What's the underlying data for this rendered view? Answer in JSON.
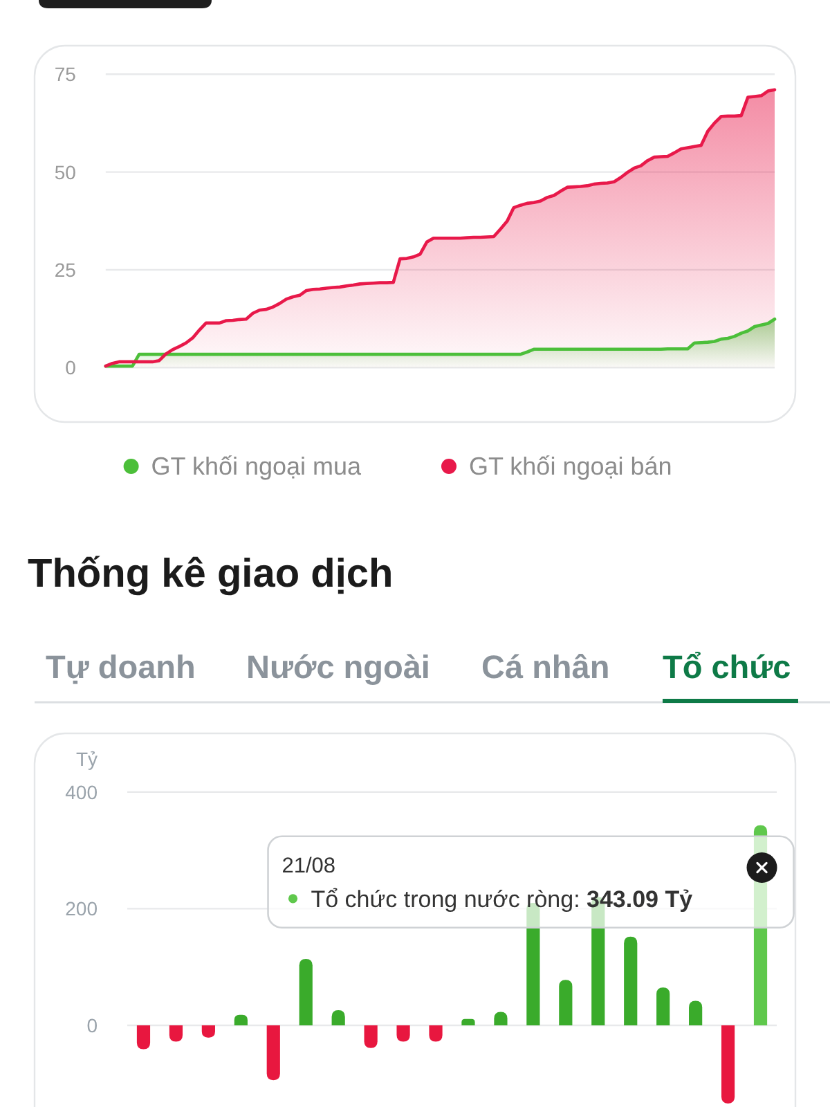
{
  "chart_data": [
    {
      "type": "area",
      "categories": [
        null,
        null,
        null,
        null,
        null,
        null,
        null,
        null,
        null,
        null,
        null,
        null,
        null,
        null,
        null,
        null,
        null,
        null,
        null,
        null,
        null,
        null,
        null,
        null,
        null,
        null,
        null,
        null,
        null,
        null,
        null,
        null,
        null,
        null,
        null,
        null,
        null,
        null,
        null,
        null,
        null,
        null,
        null,
        null,
        null,
        null,
        null,
        null,
        null,
        null,
        null,
        null,
        null,
        null,
        null,
        null,
        null,
        null,
        null,
        null,
        null,
        null,
        null,
        null,
        null,
        null,
        null,
        null,
        null,
        null,
        null,
        null,
        null,
        null,
        null,
        null,
        null,
        null,
        null,
        null,
        null,
        null,
        null,
        null,
        null,
        null,
        null,
        null,
        null,
        null,
        null,
        null,
        null,
        null,
        null,
        null,
        null,
        null,
        null,
        null,
        null
      ],
      "series": [
        {
          "name": "GT khối ngoại mua",
          "color": "#4cbf3a",
          "values": [
            0.4,
            0.4,
            0.4,
            0.4,
            0.4,
            3.4,
            3.4,
            3.4,
            3.4,
            3.4,
            3.4,
            3.4,
            3.4,
            3.4,
            3.4,
            3.4,
            3.4,
            3.4,
            3.4,
            3.4,
            3.4,
            3.4,
            3.4,
            3.4,
            3.4,
            3.4,
            3.4,
            3.4,
            3.4,
            3.4,
            3.4,
            3.4,
            3.4,
            3.4,
            3.4,
            3.4,
            3.4,
            3.4,
            3.4,
            3.4,
            3.4,
            3.4,
            3.4,
            3.4,
            3.4,
            3.4,
            3.4,
            3.4,
            3.4,
            3.4,
            3.4,
            3.4,
            3.4,
            3.4,
            3.4,
            3.4,
            3.4,
            3.4,
            3.4,
            3.4,
            3.4,
            3.4,
            3.4,
            4.0,
            4.7,
            4.7,
            4.7,
            4.7,
            4.7,
            4.7,
            4.7,
            4.7,
            4.7,
            4.7,
            4.7,
            4.7,
            4.7,
            4.7,
            4.7,
            4.7,
            4.7,
            4.7,
            4.7,
            4.7,
            4.8,
            4.8,
            4.8,
            4.8,
            6.3,
            6.4,
            6.5,
            6.7,
            7.3,
            7.5,
            8,
            8.8,
            9.4,
            10.5,
            10.9,
            11.3,
            12.4
          ]
        },
        {
          "name": "GT khối ngoại bán",
          "color": "#e8194a",
          "values": [
            0.4,
            1.1,
            1.5,
            1.5,
            1.5,
            1.5,
            1.5,
            1.5,
            1.8,
            3.5,
            4.6,
            5.4,
            6.3,
            7.6,
            9.6,
            11.4,
            11.4,
            11.4,
            12,
            12.1,
            12.3,
            12.4,
            13.9,
            14.7,
            14.9,
            15.5,
            16.4,
            17.5,
            18.1,
            18.5,
            19.7,
            20,
            20.1,
            20.3,
            20.5,
            20.6,
            20.9,
            21.1,
            21.4,
            21.5,
            21.6,
            21.7,
            21.7,
            21.8,
            27.8,
            27.9,
            28.3,
            29,
            32.1,
            33.1,
            33.1,
            33.1,
            33.1,
            33.1,
            33.2,
            33.3,
            33.3,
            33.4,
            33.5,
            35.4,
            37.4,
            40.9,
            41.5,
            42,
            42.2,
            42.6,
            43.5,
            44,
            45.1,
            46.1,
            46.2,
            46.3,
            46.5,
            46.9,
            47.1,
            47.2,
            47.5,
            48.6,
            49.9,
            51,
            51.6,
            52.9,
            53.8,
            53.9,
            54,
            54.9,
            55.9,
            56.2,
            56.5,
            56.8,
            60.4,
            62.5,
            64.2,
            64.3,
            64.3,
            64.4,
            69.1,
            69.3,
            69.5,
            70.7,
            71
          ]
        }
      ],
      "ylim": [
        0,
        75
      ],
      "yticks": [
        0,
        25,
        50,
        75
      ],
      "grid": "y",
      "legend": "bottom"
    },
    {
      "type": "bar",
      "title": "Thống kê giao dịch",
      "ylabel": "Tỷ",
      "categories": [
        null,
        null,
        null,
        null,
        null,
        null,
        null,
        null,
        null,
        null,
        null,
        null,
        null,
        null,
        null,
        null,
        null,
        null,
        null,
        null
      ],
      "values": [
        -41,
        -28,
        -21,
        18,
        -94,
        114,
        26,
        -39,
        -28,
        -28,
        11,
        23,
        210,
        78,
        220,
        152,
        65,
        42,
        -134,
        343.09
      ],
      "colors": [
        "#e8173f",
        "#e8173f",
        "#e8173f",
        "#3aab2b",
        "#e8173f",
        "#3aab2b",
        "#3aab2b",
        "#e8173f",
        "#e8173f",
        "#e8173f",
        "#3aab2b",
        "#3aab2b",
        "#3aab2b",
        "#3aab2b",
        "#3aab2b",
        "#3aab2b",
        "#3aab2b",
        "#3aab2b",
        "#e8173f",
        "#5fc84c"
      ],
      "ylim": [
        -140,
        400
      ],
      "yticks": [
        0,
        200,
        400
      ],
      "grid": "y",
      "annotations": [
        "Tự doanh",
        "Nước ngoài",
        "Cá nhân",
        "Tổ chức",
        "21/08",
        "Tổ chức trong nước ròng: 343.09 Tỷ"
      ]
    }
  ]
}
